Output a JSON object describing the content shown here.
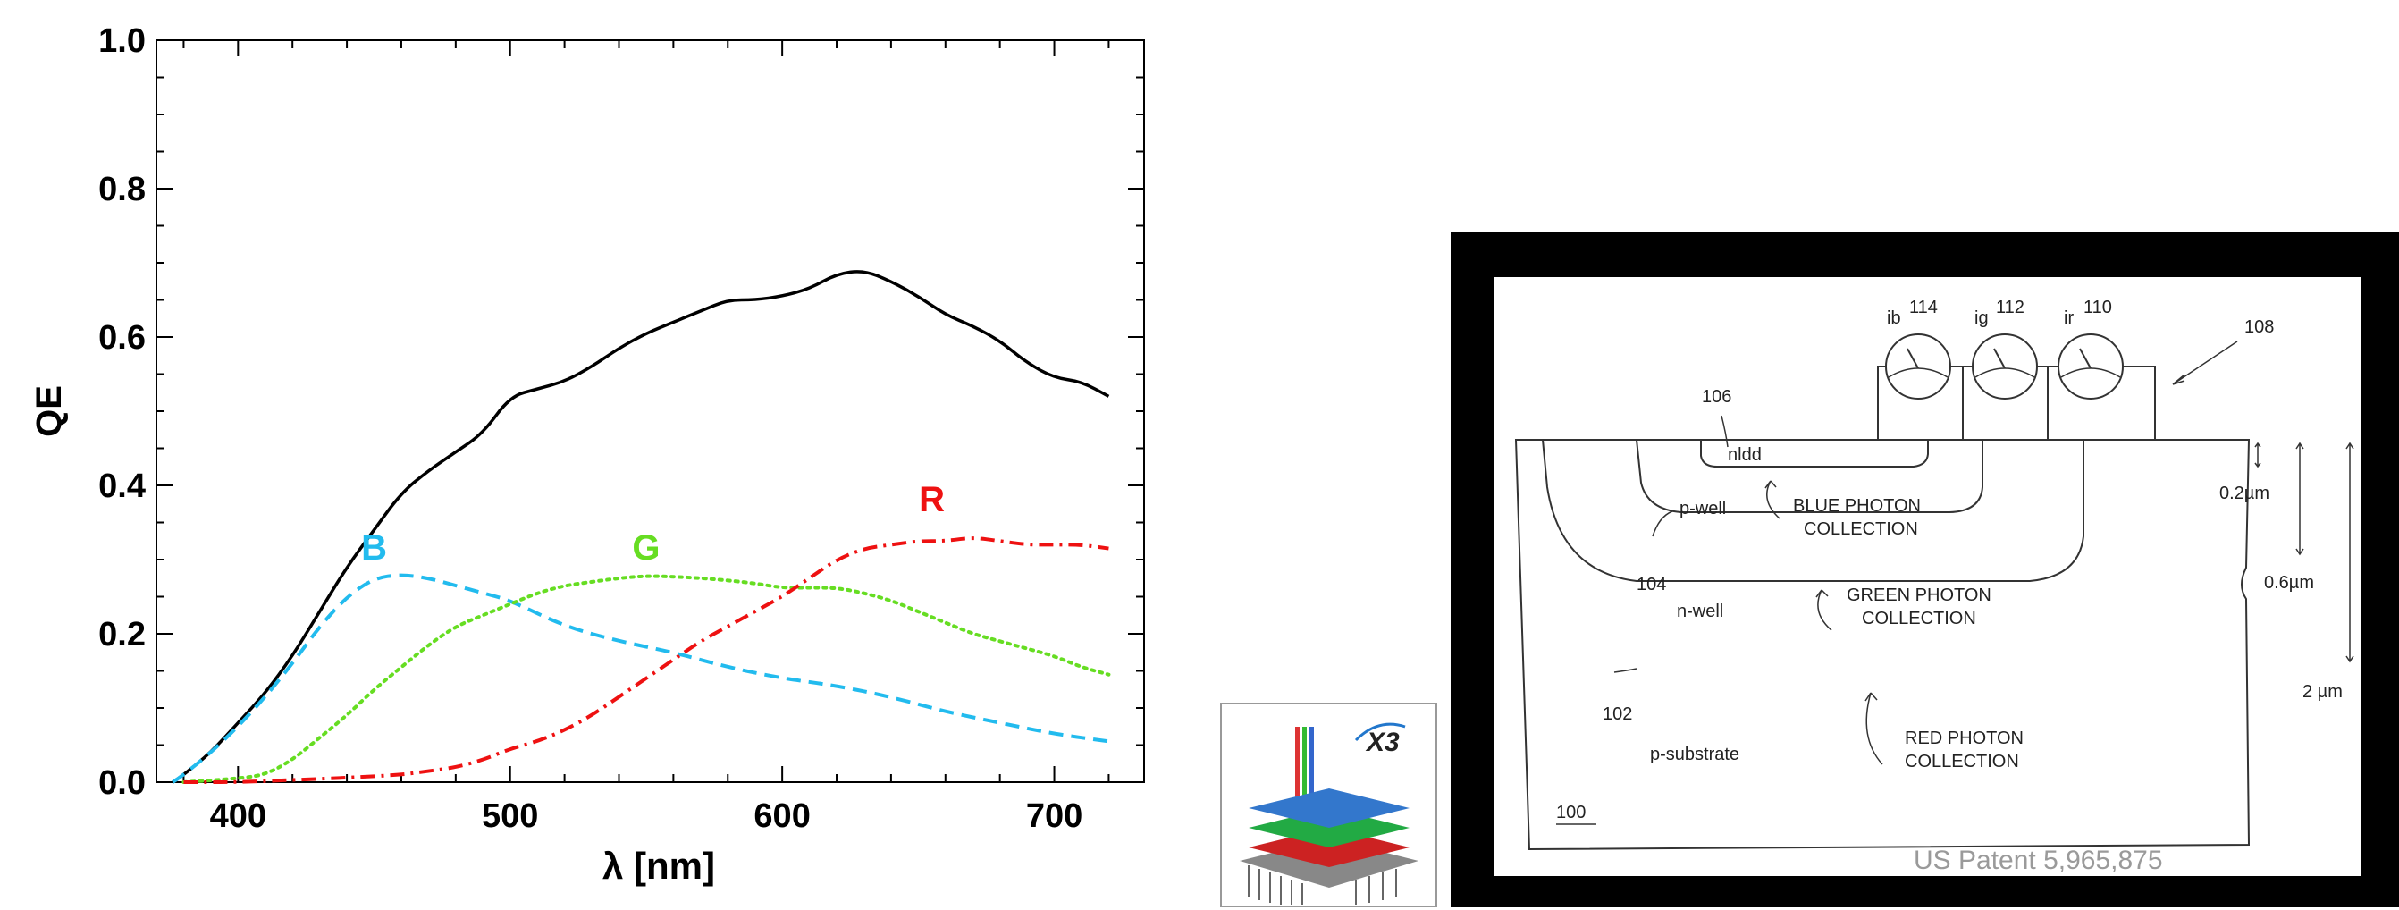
{
  "chart_data": {
    "type": "line",
    "xlabel": "λ [nm]",
    "ylabel": "QE",
    "xlim": [
      370,
      733
    ],
    "ylim": [
      0,
      1.0
    ],
    "xticks": [
      400,
      500,
      600,
      700
    ],
    "yticks": [
      "0.0",
      "0.2",
      "0.4",
      "0.6",
      "0.8",
      "1.0"
    ],
    "grid": false,
    "series": [
      {
        "name": "",
        "color": "#000000",
        "style": "solid",
        "x": [
          376,
          380,
          390,
          400,
          410,
          420,
          430,
          440,
          450,
          460,
          470,
          480,
          490,
          500,
          510,
          520,
          530,
          540,
          550,
          560,
          570,
          580,
          590,
          600,
          610,
          620,
          630,
          640,
          650,
          660,
          670,
          680,
          690,
          700,
          710,
          720
        ],
        "y": [
          0.0,
          0.01,
          0.04,
          0.08,
          0.12,
          0.17,
          0.23,
          0.29,
          0.34,
          0.39,
          0.42,
          0.445,
          0.47,
          0.52,
          0.53,
          0.54,
          0.56,
          0.585,
          0.605,
          0.62,
          0.635,
          0.65,
          0.65,
          0.655,
          0.665,
          0.685,
          0.69,
          0.675,
          0.655,
          0.63,
          0.615,
          0.595,
          0.565,
          0.545,
          0.54,
          0.52
        ]
      },
      {
        "name": "B",
        "color": "#22bbee",
        "style": "dashed",
        "label_x": 450,
        "label_y": 0.3,
        "x": [
          376,
          380,
          390,
          400,
          410,
          420,
          430,
          440,
          450,
          460,
          470,
          480,
          490,
          500,
          520,
          540,
          560,
          580,
          600,
          620,
          640,
          660,
          680,
          700,
          720
        ],
        "y": [
          0.0,
          0.01,
          0.04,
          0.075,
          0.115,
          0.16,
          0.21,
          0.25,
          0.275,
          0.28,
          0.275,
          0.265,
          0.255,
          0.245,
          0.21,
          0.19,
          0.175,
          0.155,
          0.14,
          0.13,
          0.115,
          0.095,
          0.08,
          0.065,
          0.055
        ]
      },
      {
        "name": "G",
        "color": "#66dd22",
        "style": "dotted",
        "label_x": 550,
        "label_y": 0.3,
        "x": [
          380,
          400,
          410,
          420,
          430,
          440,
          450,
          460,
          470,
          480,
          490,
          500,
          510,
          520,
          530,
          540,
          550,
          560,
          570,
          580,
          590,
          600,
          610,
          620,
          630,
          640,
          650,
          660,
          670,
          680,
          690,
          700,
          710,
          720
        ],
        "y": [
          0.0,
          0.005,
          0.01,
          0.03,
          0.06,
          0.09,
          0.125,
          0.155,
          0.185,
          0.21,
          0.225,
          0.24,
          0.255,
          0.265,
          0.27,
          0.275,
          0.278,
          0.277,
          0.275,
          0.272,
          0.268,
          0.262,
          0.262,
          0.262,
          0.255,
          0.245,
          0.23,
          0.215,
          0.2,
          0.19,
          0.18,
          0.17,
          0.155,
          0.145
        ]
      },
      {
        "name": "R",
        "color": "#ee1111",
        "style": "dashdot",
        "label_x": 655,
        "label_y": 0.365,
        "x": [
          380,
          400,
          420,
          440,
          460,
          470,
          480,
          490,
          500,
          510,
          520,
          530,
          540,
          550,
          560,
          570,
          580,
          590,
          600,
          610,
          620,
          630,
          640,
          650,
          660,
          670,
          680,
          690,
          700,
          710,
          720
        ],
        "y": [
          0.0,
          0.0,
          0.003,
          0.006,
          0.01,
          0.015,
          0.02,
          0.03,
          0.045,
          0.055,
          0.07,
          0.09,
          0.115,
          0.14,
          0.165,
          0.19,
          0.21,
          0.23,
          0.25,
          0.275,
          0.3,
          0.315,
          0.32,
          0.325,
          0.325,
          0.33,
          0.325,
          0.32,
          0.32,
          0.32,
          0.315
        ]
      }
    ]
  },
  "thumbnail": {
    "logo_text": "X3"
  },
  "patent_diagram": {
    "labels": {
      "ib": "ib",
      "ig": "ig",
      "ir": "ir",
      "n114": "114",
      "n112": "112",
      "n110": "110",
      "n108": "108",
      "n106": "106",
      "nldd": "nldd",
      "pwell": "p-well",
      "nwell": "n-well",
      "psub": "p-substrate",
      "n104": "104",
      "n102": "102",
      "n100": "100",
      "blue1": "BLUE PHOTON",
      "blue2": "COLLECTION",
      "green1": "GREEN PHOTON",
      "green2": "COLLECTION",
      "red1": "RED PHOTON",
      "red2": "COLLECTION",
      "d02": "0.2µm",
      "d06": "0.6µm",
      "d2": "2 µm"
    },
    "watermark": "US Patent 5,965,875"
  }
}
